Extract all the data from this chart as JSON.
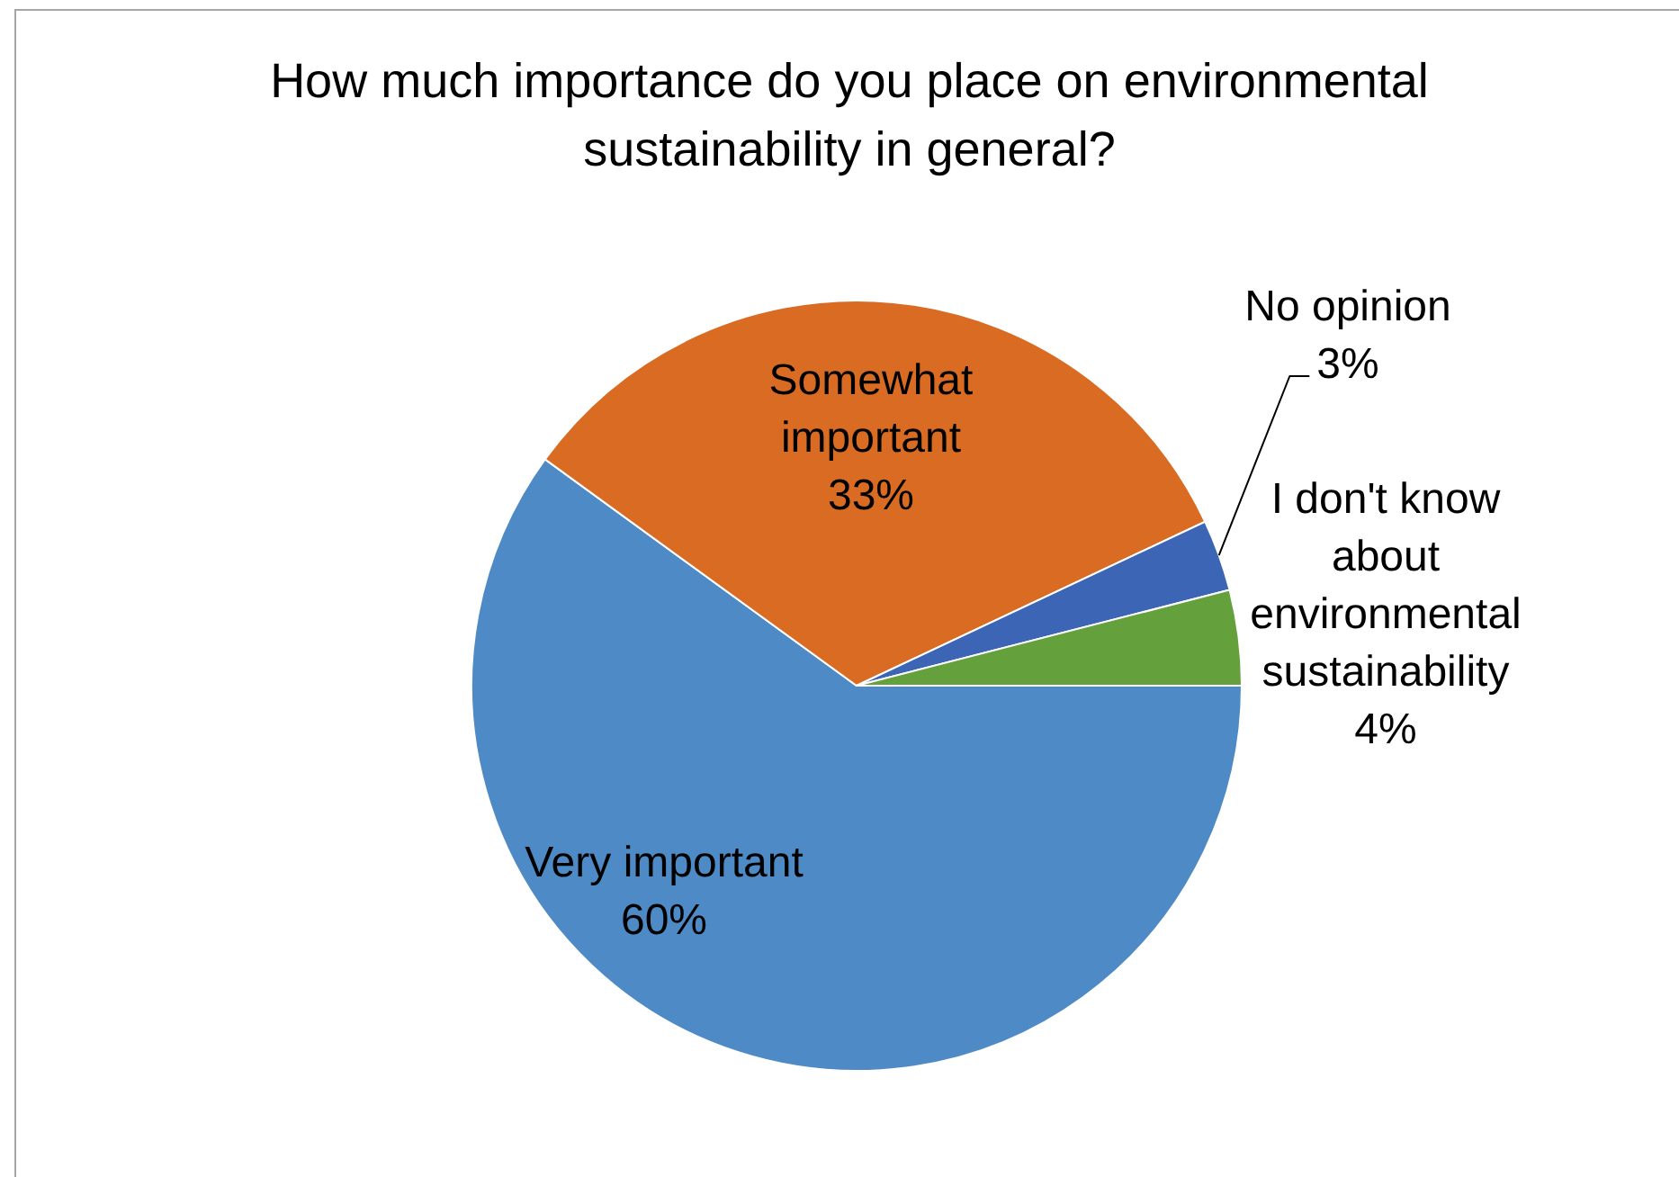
{
  "chart_data": {
    "type": "pie",
    "title": "How much importance do you place on environmental sustainability in general?",
    "categories": [
      "Very important",
      "Somewhat important",
      "No opinion",
      "I don't know about environmental sustainability"
    ],
    "values": [
      60,
      33,
      3,
      4
    ],
    "value_labels": [
      "60%",
      "33%",
      "3%",
      "4%"
    ],
    "colors": [
      "#4d8ac6",
      "#d96b22",
      "#3c65b5",
      "#64a03c"
    ]
  }
}
